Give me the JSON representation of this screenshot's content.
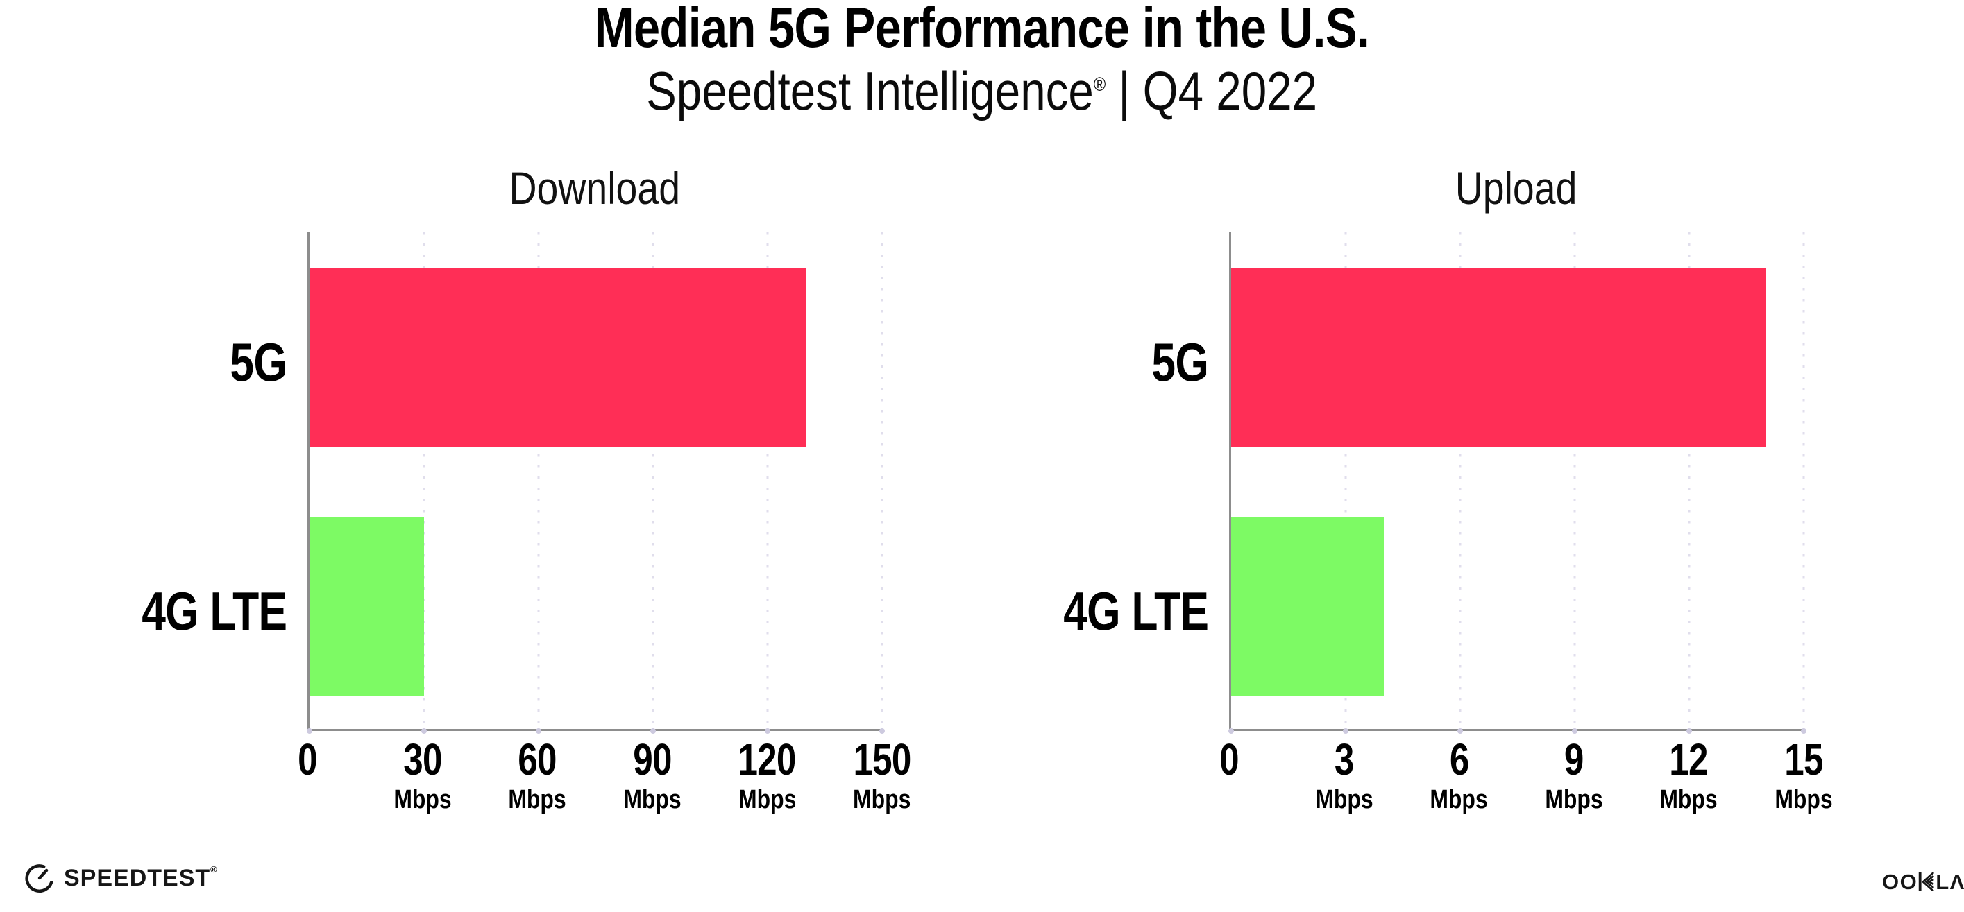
{
  "header": {
    "title": "Median 5G Performance in the U.S.",
    "subtitle_brand": "Speedtest Intelligence",
    "subtitle_reg": "®",
    "subtitle_rest": " | Q4 2022"
  },
  "chart_data": [
    {
      "type": "bar",
      "orientation": "horizontal",
      "title": "Download",
      "categories": [
        "5G",
        "4G LTE"
      ],
      "values": [
        130,
        30
      ],
      "unit": "Mbps",
      "xlim": [
        0,
        150
      ],
      "xticks": [
        0,
        30,
        60,
        90,
        120,
        150
      ],
      "bar_colors": [
        "#ff2e56",
        "#7dfa64"
      ],
      "grid": "dotted-vertical",
      "legend": "none"
    },
    {
      "type": "bar",
      "orientation": "horizontal",
      "title": "Upload",
      "categories": [
        "5G",
        "4G LTE"
      ],
      "values": [
        14,
        4
      ],
      "unit": "Mbps",
      "xlim": [
        0,
        15
      ],
      "xticks": [
        0,
        3,
        6,
        9,
        12,
        15
      ],
      "bar_colors": [
        "#ff2e56",
        "#7dfa64"
      ],
      "grid": "dotted-vertical",
      "legend": "none"
    }
  ],
  "footer": {
    "speedtest_label": "SPEEDTEST",
    "speedtest_mark": "®",
    "ookla_oo": "OO",
    "ookla_l": "L",
    "ookla_a": "Λ",
    "ookla_mark": "®"
  },
  "colors": {
    "bar_5g": "#ff2e56",
    "bar_4g_lte": "#7dfa64",
    "axis": "#8d8d8d",
    "gridline": "#e0deec",
    "tick_dot": "#cdcadf",
    "text": "#000000",
    "logo": "#161616",
    "background": "#ffffff"
  }
}
